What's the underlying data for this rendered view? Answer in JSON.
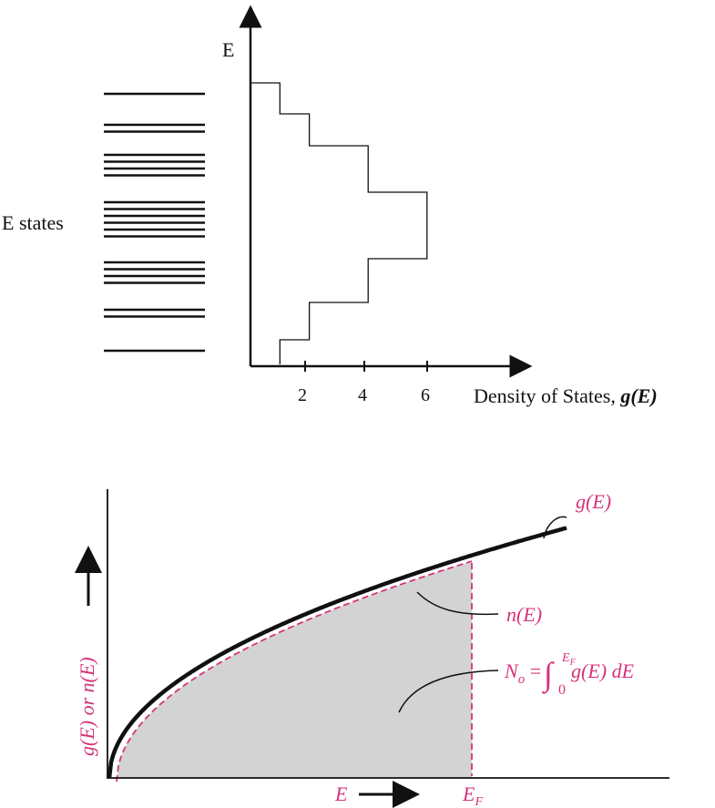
{
  "colors": {
    "ink": "#111111",
    "accent": "#d6337a",
    "shade": "#d3d3d3"
  },
  "top": {
    "e_axis_label": "E",
    "states_label": "E states",
    "x_axis_label_text": "Density of States, ",
    "x_axis_label_math": "g(E)",
    "ticks": [
      "2",
      "4",
      "6"
    ],
    "energy_level_groups": [
      1,
      2,
      4,
      6,
      4,
      2,
      1
    ],
    "histogram_values": [
      1,
      2,
      4,
      6,
      4,
      2,
      1
    ]
  },
  "bottom": {
    "curve_label": "g(E)",
    "shaded_label": "n(E)",
    "integral_lhs": "N",
    "integral_lhs_sub": "o",
    "integral_eq": " = ",
    "integral_sign": "∫",
    "integral_lower": "0",
    "integral_upper": "E",
    "integral_upper_sub": "F",
    "integrand": "g(E) dE",
    "y_axis_label": "g(E) or n(E)",
    "x_axis_label": "E",
    "fermi_label": "E",
    "fermi_sub": "F"
  }
}
